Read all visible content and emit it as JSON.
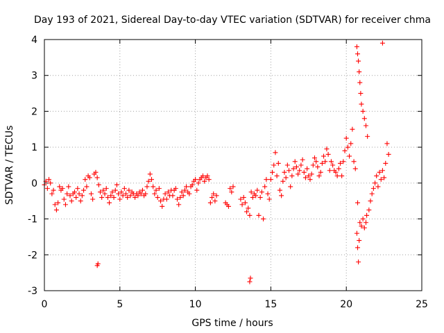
{
  "chart_data": {
    "type": "scatter",
    "title": "Day 193 of 2021, Sidereal Day-to-day VTEC variation (SDTVAR) for receiver chma",
    "xlabel": "GPS time / hours",
    "ylabel": "SDTVAR / TECUs",
    "xlim": [
      0,
      25
    ],
    "ylim": [
      -3,
      4
    ],
    "xticks": [
      "0",
      "5",
      "10",
      "15",
      "20",
      "25"
    ],
    "yticks": [
      "-3",
      "-2",
      "-1",
      "0",
      "1",
      "2",
      "3",
      "4"
    ],
    "xtick_values": [
      0,
      5,
      10,
      15,
      20,
      25
    ],
    "ytick_values": [
      -3,
      -2,
      -1,
      0,
      1,
      2,
      3,
      4
    ],
    "grid": true,
    "marker": "+",
    "color": "#ff0000",
    "series": [
      {
        "name": "SDTVAR",
        "points": [
          [
            0.0,
            -0.05
          ],
          [
            0.1,
            0.05
          ],
          [
            0.2,
            -0.15
          ],
          [
            0.3,
            0.1
          ],
          [
            0.4,
            0.0
          ],
          [
            0.5,
            -0.3
          ],
          [
            0.6,
            -0.2
          ],
          [
            0.7,
            -0.6
          ],
          [
            0.8,
            -0.75
          ],
          [
            0.9,
            -0.55
          ],
          [
            1.0,
            -0.1
          ],
          [
            1.1,
            -0.2
          ],
          [
            1.2,
            -0.15
          ],
          [
            1.3,
            -0.45
          ],
          [
            1.4,
            -0.6
          ],
          [
            1.5,
            -0.3
          ],
          [
            1.6,
            -0.1
          ],
          [
            1.7,
            -0.35
          ],
          [
            1.8,
            -0.5
          ],
          [
            1.9,
            -0.3
          ],
          [
            2.0,
            -0.25
          ],
          [
            2.1,
            -0.4
          ],
          [
            2.2,
            -0.15
          ],
          [
            2.3,
            -0.3
          ],
          [
            2.4,
            -0.5
          ],
          [
            2.5,
            -0.35
          ],
          [
            2.6,
            -0.2
          ],
          [
            2.7,
            0.1
          ],
          [
            2.8,
            -0.1
          ],
          [
            2.9,
            0.2
          ],
          [
            3.0,
            0.15
          ],
          [
            3.1,
            -0.3
          ],
          [
            3.2,
            -0.45
          ],
          [
            3.3,
            0.25
          ],
          [
            3.4,
            0.3
          ],
          [
            3.5,
            0.15
          ],
          [
            3.6,
            -0.05
          ],
          [
            3.7,
            -0.25
          ],
          [
            3.8,
            -0.4
          ],
          [
            3.9,
            -0.2
          ],
          [
            4.0,
            -0.3
          ],
          [
            4.1,
            -0.15
          ],
          [
            4.2,
            -0.4
          ],
          [
            4.3,
            -0.55
          ],
          [
            4.4,
            -0.35
          ],
          [
            4.5,
            -0.25
          ],
          [
            4.6,
            -0.4
          ],
          [
            4.7,
            -0.2
          ],
          [
            4.8,
            -0.05
          ],
          [
            4.9,
            -0.3
          ],
          [
            5.0,
            -0.45
          ],
          [
            5.1,
            -0.25
          ],
          [
            5.2,
            -0.35
          ],
          [
            5.3,
            -0.15
          ],
          [
            5.4,
            -0.3
          ],
          [
            5.5,
            -0.4
          ],
          [
            5.6,
            -0.2
          ],
          [
            5.7,
            -0.35
          ],
          [
            5.8,
            -0.25
          ],
          [
            5.9,
            -0.3
          ],
          [
            6.0,
            -0.4
          ],
          [
            6.1,
            -0.3
          ],
          [
            6.2,
            -0.35
          ],
          [
            6.3,
            -0.25
          ],
          [
            6.4,
            -0.3
          ],
          [
            6.5,
            -0.2
          ],
          [
            6.6,
            -0.35
          ],
          [
            6.7,
            -0.3
          ],
          [
            6.8,
            -0.1
          ],
          [
            6.9,
            0.05
          ],
          [
            7.0,
            0.25
          ],
          [
            7.1,
            0.1
          ],
          [
            7.2,
            -0.1
          ],
          [
            7.3,
            -0.3
          ],
          [
            7.4,
            -0.2
          ],
          [
            7.5,
            -0.4
          ],
          [
            7.6,
            -0.15
          ],
          [
            7.7,
            -0.5
          ],
          [
            7.8,
            -0.65
          ],
          [
            7.9,
            -0.45
          ],
          [
            8.0,
            -0.3
          ],
          [
            8.1,
            -0.45
          ],
          [
            8.2,
            -0.25
          ],
          [
            8.3,
            -0.35
          ],
          [
            8.4,
            -0.2
          ],
          [
            8.5,
            -0.35
          ],
          [
            8.6,
            -0.2
          ],
          [
            8.7,
            -0.15
          ],
          [
            8.8,
            -0.45
          ],
          [
            8.9,
            -0.6
          ],
          [
            9.0,
            -0.4
          ],
          [
            9.1,
            -0.25
          ],
          [
            9.2,
            -0.35
          ],
          [
            9.3,
            -0.2
          ],
          [
            9.4,
            -0.1
          ],
          [
            9.5,
            -0.25
          ],
          [
            9.6,
            -0.3
          ],
          [
            9.7,
            -0.1
          ],
          [
            9.8,
            -0.05
          ],
          [
            9.9,
            0.05
          ],
          [
            10.0,
            0.1
          ],
          [
            10.1,
            -0.2
          ],
          [
            10.2,
            0.0
          ],
          [
            10.3,
            0.1
          ],
          [
            10.4,
            0.15
          ],
          [
            10.5,
            0.2
          ],
          [
            10.6,
            0.05
          ],
          [
            10.7,
            0.15
          ],
          [
            10.8,
            0.2
          ],
          [
            10.9,
            0.1
          ],
          [
            11.0,
            -0.55
          ],
          [
            11.1,
            -0.4
          ],
          [
            11.2,
            -0.3
          ],
          [
            11.3,
            -0.5
          ],
          [
            11.4,
            -0.35
          ],
          [
            12.0,
            -0.55
          ],
          [
            12.1,
            -0.6
          ],
          [
            12.2,
            -0.65
          ],
          [
            12.3,
            -0.15
          ],
          [
            12.4,
            -0.25
          ],
          [
            12.5,
            -0.1
          ],
          [
            13.0,
            -0.45
          ],
          [
            13.1,
            -0.6
          ],
          [
            13.2,
            -0.4
          ],
          [
            13.3,
            -0.55
          ],
          [
            13.4,
            -0.8
          ],
          [
            13.5,
            -0.7
          ],
          [
            13.6,
            -0.9
          ],
          [
            13.7,
            -0.25
          ],
          [
            13.8,
            -0.4
          ],
          [
            13.9,
            -0.3
          ],
          [
            14.0,
            -0.35
          ],
          [
            14.1,
            -0.2
          ],
          [
            14.2,
            -0.9
          ],
          [
            14.3,
            -0.4
          ],
          [
            14.4,
            -0.25
          ],
          [
            14.5,
            -1.0
          ],
          [
            14.6,
            -0.1
          ],
          [
            14.7,
            0.1
          ],
          [
            14.8,
            -0.3
          ],
          [
            14.9,
            -0.45
          ],
          [
            15.0,
            0.1
          ],
          [
            15.1,
            0.3
          ],
          [
            15.2,
            0.5
          ],
          [
            15.3,
            0.85
          ],
          [
            15.4,
            0.2
          ],
          [
            15.5,
            0.55
          ],
          [
            15.6,
            -0.2
          ],
          [
            15.7,
            -0.35
          ],
          [
            15.8,
            0.05
          ],
          [
            15.9,
            0.3
          ],
          [
            16.0,
            0.15
          ],
          [
            16.1,
            0.5
          ],
          [
            16.2,
            0.35
          ],
          [
            16.3,
            -0.1
          ],
          [
            16.4,
            0.2
          ],
          [
            16.5,
            0.4
          ],
          [
            16.6,
            0.6
          ],
          [
            16.7,
            0.45
          ],
          [
            16.8,
            0.25
          ],
          [
            16.9,
            0.35
          ],
          [
            17.0,
            0.5
          ],
          [
            17.1,
            0.65
          ],
          [
            17.2,
            0.3
          ],
          [
            17.3,
            0.15
          ],
          [
            17.4,
            0.4
          ],
          [
            17.5,
            0.2
          ],
          [
            17.6,
            0.1
          ],
          [
            17.7,
            0.25
          ],
          [
            17.8,
            0.5
          ],
          [
            17.9,
            0.7
          ],
          [
            18.0,
            0.6
          ],
          [
            18.1,
            0.45
          ],
          [
            18.2,
            0.2
          ],
          [
            18.3,
            0.3
          ],
          [
            18.4,
            0.55
          ],
          [
            18.5,
            0.75
          ],
          [
            18.6,
            0.6
          ],
          [
            18.7,
            0.95
          ],
          [
            18.8,
            0.8
          ],
          [
            18.9,
            0.35
          ],
          [
            19.0,
            0.6
          ],
          [
            19.1,
            0.5
          ],
          [
            19.2,
            0.35
          ],
          [
            19.3,
            0.3
          ],
          [
            19.4,
            0.2
          ],
          [
            19.5,
            0.4
          ],
          [
            19.6,
            0.55
          ],
          [
            19.7,
            0.2
          ],
          [
            19.8,
            0.6
          ],
          [
            19.9,
            0.9
          ],
          [
            20.0,
            1.25
          ],
          [
            20.1,
            1.0
          ],
          [
            20.2,
            0.75
          ],
          [
            20.3,
            1.1
          ],
          [
            20.4,
            1.5
          ],
          [
            20.5,
            0.6
          ],
          [
            20.6,
            0.4
          ],
          [
            20.7,
            -1.4
          ],
          [
            20.75,
            -1.8
          ],
          [
            20.8,
            -2.2
          ],
          [
            20.85,
            -1.6
          ],
          [
            20.9,
            -1.1
          ],
          [
            21.0,
            -1.2
          ],
          [
            21.1,
            -1.0
          ],
          [
            21.2,
            -1.25
          ],
          [
            21.3,
            -1.1
          ],
          [
            21.35,
            -0.9
          ],
          [
            20.75,
            -0.55
          ],
          [
            20.7,
            3.8
          ],
          [
            20.75,
            3.6
          ],
          [
            20.8,
            3.4
          ],
          [
            20.85,
            3.1
          ],
          [
            20.9,
            2.8
          ],
          [
            20.95,
            2.5
          ],
          [
            21.0,
            2.2
          ],
          [
            21.1,
            2.0
          ],
          [
            21.2,
            1.8
          ],
          [
            21.3,
            1.6
          ],
          [
            21.4,
            1.3
          ],
          [
            21.5,
            -0.75
          ],
          [
            21.6,
            -0.5
          ],
          [
            21.7,
            -0.3
          ],
          [
            21.8,
            -0.15
          ],
          [
            21.9,
            0.0
          ],
          [
            22.0,
            0.2
          ],
          [
            22.1,
            -0.1
          ],
          [
            22.2,
            0.3
          ],
          [
            22.3,
            0.1
          ],
          [
            22.4,
            0.35
          ],
          [
            22.5,
            0.15
          ],
          [
            22.6,
            0.55
          ],
          [
            22.7,
            1.1
          ],
          [
            22.8,
            0.8
          ],
          [
            3.5,
            -2.3
          ],
          [
            3.55,
            -2.25
          ],
          [
            13.6,
            -2.75
          ],
          [
            13.65,
            -2.65
          ],
          [
            22.4,
            3.9
          ]
        ]
      }
    ]
  }
}
